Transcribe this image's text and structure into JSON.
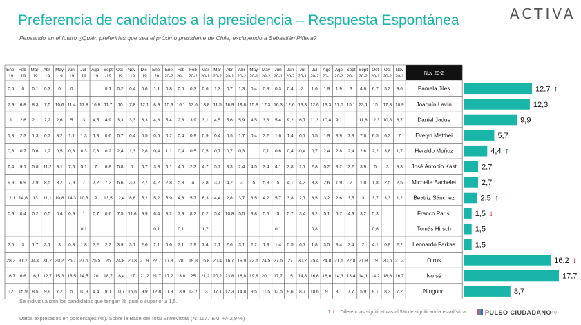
{
  "header": {
    "title": "Preferencia de candidatos a la presidencia – Respuesta Espontánea",
    "subtitle": "Pensando en el futuro ¿Quién preferirías que sea el próximo presidente de Chile, excluyendo a Sebastián Piñera?",
    "logo": "ACTIVA"
  },
  "table": {
    "periods": [
      [
        "Ene-",
        "19"
      ],
      [
        "Feb-",
        "19"
      ],
      [
        "Mar-",
        "19"
      ],
      [
        "Abr-",
        "19"
      ],
      [
        "May",
        "-19"
      ],
      [
        "Jun-",
        "19"
      ],
      [
        "Jul-",
        "19"
      ],
      [
        "Ago-",
        "19"
      ],
      [
        "Sept",
        "-19"
      ],
      [
        "Oct-",
        "19"
      ],
      [
        "Nov-",
        "19"
      ],
      [
        "Dic-",
        "19"
      ],
      [
        "Ene-",
        "20"
      ],
      [
        "Ene",
        "20-2"
      ],
      [
        "Feb",
        "20-1"
      ],
      [
        "Feb",
        "20-2"
      ],
      [
        "Mar",
        "20-1"
      ],
      [
        "Mar",
        "20-2"
      ],
      [
        "Abr",
        "20-1"
      ],
      [
        "Abr",
        "20-2"
      ],
      [
        "May",
        "20-1"
      ],
      [
        "May",
        "20-2"
      ],
      [
        "Jun",
        "20-1"
      ],
      [
        "Jun",
        "20-2"
      ],
      [
        "Jul",
        "20-1"
      ],
      [
        "Jul",
        "20-2"
      ],
      [
        "Ago",
        "20-1"
      ],
      [
        "Ago",
        "20-2"
      ],
      [
        "Sept",
        "20-1"
      ],
      [
        "Sept",
        "20-2"
      ],
      [
        "Oct",
        "20-1"
      ],
      [
        "Oct",
        "20-2"
      ],
      [
        "Nov",
        "20-1"
      ]
    ],
    "current_label": "Nov 20-2",
    "rows": [
      [
        "0,5",
        "0",
        "0,1",
        "0,3",
        "0",
        "0",
        "",
        "",
        "0,1",
        "0,2",
        "0,4",
        "0,6",
        "1,1",
        "0,8",
        "0,5",
        "0,3",
        "0,6",
        "1,3",
        "0,7",
        "1,3",
        "0,4",
        "0,8",
        "0,3",
        "0,4",
        "3",
        "1,6",
        "1,9",
        "1,9",
        "3",
        "4,8",
        "6,7",
        "5,2",
        "9,6"
      ],
      [
        "7,9",
        "6,8",
        "8,3",
        "7,5",
        "10,6",
        "11,4",
        "17,8",
        "16,9",
        "11,7",
        "10",
        "7,8",
        "12,1",
        "8,9",
        "15,3",
        "16,1",
        "13,6",
        "13,8",
        "11,5",
        "18,9",
        "19,8",
        "15,8",
        "17,3",
        "16,3",
        "12,6",
        "13,3",
        "12,6",
        "13,3",
        "17,5",
        "15,1",
        "23,1",
        "15",
        "17,3",
        "10,9"
      ],
      [
        "1",
        "2,6",
        "2,1",
        "2,2",
        "2,6",
        "5",
        "3",
        "4,5",
        "4,9",
        "3,3",
        "3,3",
        "6,3",
        "4,8",
        "5,4",
        "2,3",
        "3,9",
        "3,1",
        "4,5",
        "5,6",
        "5,9",
        "4,5",
        "3,3",
        "5,4",
        "9,2",
        "6,7",
        "11,3",
        "10,4",
        "9,1",
        "11",
        "11,8",
        "12,3",
        "10,8",
        "8,7"
      ],
      [
        "1,3",
        "2,3",
        "1,3",
        "0,7",
        "3,2",
        "1,1",
        "1,3",
        "1,3",
        "0,6",
        "0,7",
        "0,4",
        "0,5",
        "0,6",
        "0,2",
        "0,4",
        "0,9",
        "0,9",
        "0,4",
        "0,5",
        "1,7",
        "0,4",
        "2,2",
        "1,6",
        "1,4",
        "0,7",
        "0,5",
        "1,9",
        "3,9",
        "7,3",
        "7,8",
        "6,5",
        "6,3",
        "7"
      ],
      [
        "0,6",
        "0,7",
        "0,6",
        "1,2",
        "0,5",
        "0,8",
        "0,3",
        "0,3",
        "0,2",
        "2,4",
        "1,3",
        "2,8",
        "0,4",
        "1,1",
        "0,4",
        "0,5",
        "0,5",
        "0,7",
        "0,7",
        "0,3",
        "1",
        "0,1",
        "0,6",
        "0,4",
        "0,4",
        "0,7",
        "2,4",
        "2,8",
        "2,4",
        "2,6",
        "2,2",
        "3,8",
        "1,7"
      ],
      [
        "6,4",
        "9,1",
        "5,8",
        "11,2",
        "8,1",
        "7,6",
        "5,1",
        "7",
        "6,8",
        "5,8",
        "7",
        "6,7",
        "3,9",
        "6,1",
        "4,5",
        "2,3",
        "4,7",
        "5,7",
        "3,3",
        "2,4",
        "4,5",
        "3,4",
        "4,1",
        "3,8",
        "2,7",
        "2,8",
        "5,2",
        "3,2",
        "3,2",
        "3,9",
        "5",
        "3",
        "3,3"
      ],
      [
        "9,9",
        "6,9",
        "7,9",
        "8,5",
        "8,2",
        "7,9",
        "7",
        "7,2",
        "7,2",
        "6,6",
        "3,7",
        "2,7",
        "4,2",
        "2,8",
        "5,8",
        "4",
        "3,8",
        "3,7",
        "4,2",
        "3",
        "5",
        "5,3",
        "5",
        "4,1",
        "4,3",
        "3,3",
        "2,6",
        "1,9",
        "2",
        "1,8",
        "1,8",
        "2,5",
        "2,5"
      ],
      [
        "12,1",
        "14,6",
        "13",
        "11,1",
        "10,8",
        "14,3",
        "10,3",
        "9",
        "13,5",
        "12,4",
        "8,6",
        "5,2",
        "5,2",
        "5,9",
        "4,6",
        "5,7",
        "6,3",
        "4,4",
        "2,8",
        "3,7",
        "3,5",
        "4,2",
        "5,7",
        "3,8",
        "2,7",
        "3,5",
        "3,2",
        "2,6",
        "3,5",
        "3",
        "3,7",
        "3,3",
        "1,2"
      ],
      [
        "0,9",
        "0,4",
        "0,2",
        "0,5",
        "0,4",
        "0,9",
        "1",
        "0,7",
        "0,6",
        "7,5",
        "11,6",
        "9,9",
        "6,4",
        "8,2",
        "7,9",
        "8,2",
        "6,2",
        "5,4",
        "10,8",
        "5,5",
        "3,8",
        "5,6",
        "5",
        "5,7",
        "3,4",
        "3,2",
        "5,1",
        "5,7",
        "4,9",
        "3,2",
        "5,3",
        "",
        ""
      ],
      [
        "",
        "",
        "",
        "",
        "",
        "",
        "0,1",
        "",
        "",
        "",
        "",
        "",
        "0,1",
        "",
        "0,1",
        "",
        "1,7",
        "",
        "",
        "",
        "",
        "",
        "0,1",
        "",
        "",
        "0,8",
        "",
        "",
        "",
        "",
        "0,6",
        "",
        ""
      ],
      [
        "2,5",
        "3",
        "1,7",
        "3,1",
        "3",
        "0,8",
        "1,8",
        "3,2",
        "2,2",
        "3,9",
        "3,1",
        "2,6",
        "2,1",
        "5,6",
        "3,1",
        "2,9",
        "7,4",
        "2,1",
        "2,6",
        "3,1",
        "2,2",
        "1,9",
        "1,4",
        "5,5",
        "6,7",
        "1,8",
        "3,5",
        "3,4",
        "3,4",
        "2",
        "4,1",
        "0,9",
        "2,2"
      ],
      [
        "28,2",
        "31,2",
        "34,4",
        "31,2",
        "30,2",
        "26,7",
        "27,5",
        "25,5",
        "25",
        "24,8",
        "20,8",
        "21,9",
        "22,7",
        "17,8",
        "28",
        "19,8",
        "16,8",
        "20,4",
        "16,7",
        "19,9",
        "22,6",
        "24,5",
        "27,6",
        "27",
        "30,2",
        "25,4",
        "24,8",
        "21,6",
        "22,8",
        "21,9",
        "19",
        "20,5",
        "21,3"
      ],
      [
        "16,7",
        "6,6",
        "16,1",
        "12,7",
        "15,3",
        "18,5",
        "14,5",
        "20",
        "18,7",
        "18,4",
        "17",
        "21,2",
        "21,7",
        "17,2",
        "13,8",
        "25",
        "21,2",
        "20,2",
        "23,8",
        "18,8",
        "19,8",
        "20,1",
        "17,7",
        "15",
        "14,8",
        "16,6",
        "16,6",
        "14,3",
        "13,4",
        "14,1",
        "14,2",
        "18,6",
        "16,7"
      ],
      [
        "12",
        "15,9",
        "8,5",
        "9,9",
        "7,2",
        "5",
        "10,3",
        "4,4",
        "9,1",
        "10,7",
        "16,6",
        "9,9",
        "12,8",
        "11,8",
        "13,9",
        "12,7",
        "13",
        "17,1",
        "12,3",
        "14,8",
        "9,5",
        "11,5",
        "12,5",
        "9,6",
        "8,7",
        "10,6",
        "9",
        "8,1",
        "7,7",
        "5,9",
        "9,1",
        "8,3",
        "7,2"
      ]
    ]
  },
  "chart_data": {
    "type": "bar",
    "orientation": "horizontal",
    "title": "Nov 20-2",
    "categories": [
      "Pamela Jiles",
      "Joaquín Lavín",
      "Daniel Jadue",
      "Evelyn Matthei",
      "Heraldo Muñoz",
      "José Antonio Kast",
      "Michelle Bachelet",
      "Beatriz Sánchez",
      "Franco Parisi",
      "Tomás Hirsch",
      "Leonardo Farkas",
      "Otros",
      "No sé",
      "Ninguno"
    ],
    "values": [
      12.7,
      12.3,
      9.9,
      5.7,
      4.4,
      2.7,
      2.7,
      2.5,
      1.5,
      1.5,
      1.5,
      16.2,
      17.7,
      8.7
    ],
    "value_labels": [
      "12,7",
      "12,3",
      "9,9",
      "5,7",
      "4,4",
      "2,7",
      "2,7",
      "2,5",
      "1,5",
      "1,5",
      "1,5",
      "16,2",
      "17,7",
      "8,7"
    ],
    "significance": [
      "up",
      "",
      "",
      "",
      "up",
      "",
      "",
      "up",
      "down",
      "",
      "",
      "down",
      "",
      ""
    ],
    "xlim": [
      0,
      17.7
    ],
    "bar_color": "#19b5a8",
    "up_color": "#1f3fd0",
    "down_color": "#d8232a"
  },
  "footer": {
    "note_threshold": "Se individualizan los candidatos que tengan % igual o superior a 1,5.",
    "note_base": "Datos expresados en porcentajes (%). Sobre la Base del Total Entrevistas (N: 1177  EM: +/- 2,9 %)",
    "legend_up": "↑",
    "legend_down": "↓",
    "legend_text": "Diferencias significativas al 5% de significancia estadística",
    "brand": "PULSO CIUDADANO",
    "page": "40"
  }
}
